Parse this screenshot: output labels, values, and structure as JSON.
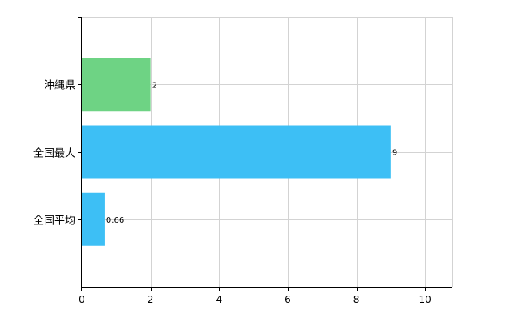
{
  "chart_data": {
    "type": "bar",
    "orientation": "horizontal",
    "categories": [
      "沖縄県",
      "全国最大",
      "全国平均"
    ],
    "values": [
      2,
      9,
      0.66
    ],
    "value_labels": [
      "2",
      "9",
      "0.66"
    ],
    "colors": [
      "#6ed384",
      "#3dbff5",
      "#3dbff5"
    ],
    "xlim": [
      0,
      10.8
    ],
    "x_ticks": [
      0,
      2,
      4,
      6,
      8,
      10
    ],
    "grid": true,
    "title": "",
    "xlabel": "",
    "ylabel": ""
  }
}
